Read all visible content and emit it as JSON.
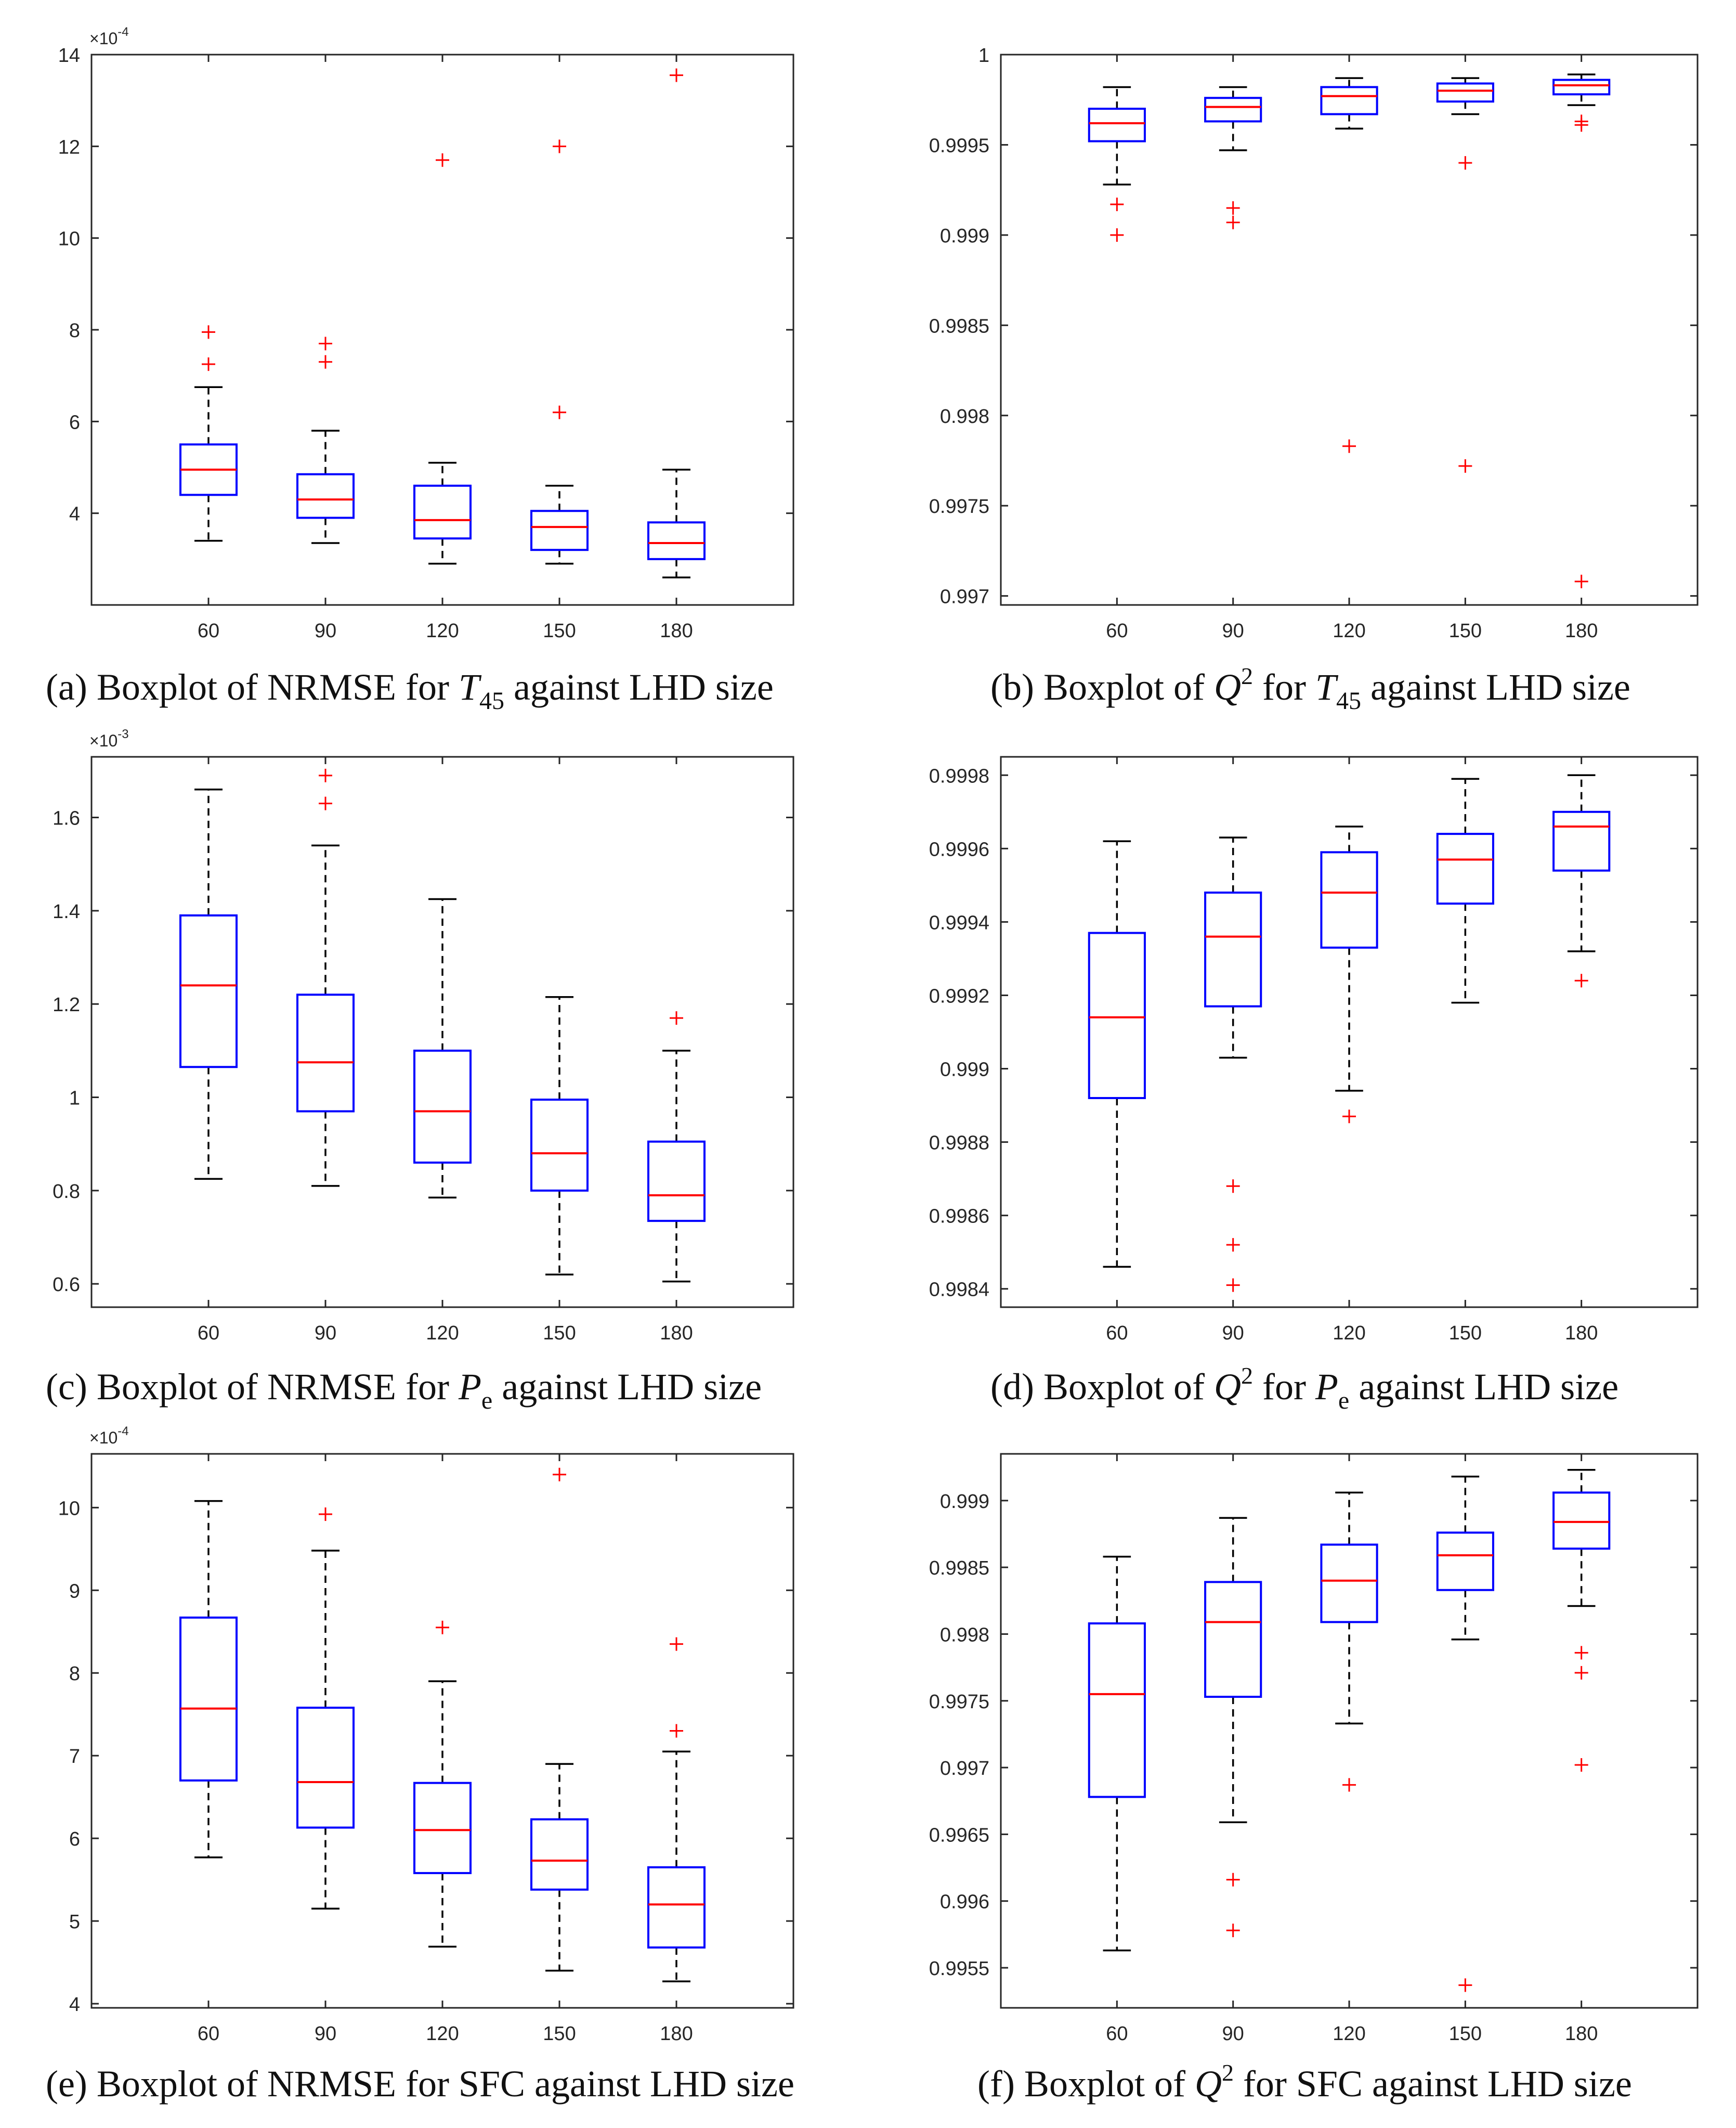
{
  "colors": {
    "box": "#0000ff",
    "median": "#ff0000",
    "outlier": "#ff0000",
    "whisker": "#000000",
    "axis": "#262626"
  },
  "chart_data": [
    {
      "type": "boxplot",
      "caption": {
        "pre": "(a) Boxplot of NRMSE for ",
        "sym": "T",
        "sub": "45",
        "sup": "",
        "post": " against LHD size"
      },
      "exponent": {
        "base": "×10",
        "power": "-4"
      },
      "categories": [
        "60",
        "90",
        "120",
        "150",
        "180"
      ],
      "ylim": [
        2,
        14
      ],
      "yticks": [
        4,
        6,
        8,
        10,
        12,
        14
      ],
      "ytick_labels": [
        "4",
        "6",
        "8",
        "10",
        "12",
        "14"
      ],
      "boxes": [
        {
          "whisker_low": 3.4,
          "q1": 4.4,
          "median": 4.95,
          "q3": 5.5,
          "whisker_high": 6.75,
          "outliers": [
            7.25,
            7.95
          ]
        },
        {
          "whisker_low": 3.35,
          "q1": 3.9,
          "median": 4.3,
          "q3": 4.85,
          "whisker_high": 5.8,
          "outliers": [
            7.3,
            7.7
          ]
        },
        {
          "whisker_low": 2.9,
          "q1": 3.45,
          "median": 3.85,
          "q3": 4.6,
          "whisker_high": 5.1,
          "outliers": [
            11.7
          ]
        },
        {
          "whisker_low": 2.9,
          "q1": 3.2,
          "median": 3.7,
          "q3": 4.05,
          "whisker_high": 4.6,
          "outliers": [
            6.2,
            12.0
          ]
        },
        {
          "whisker_low": 2.6,
          "q1": 3.0,
          "median": 3.35,
          "q3": 3.8,
          "whisker_high": 4.95,
          "outliers": [
            13.55
          ]
        }
      ]
    },
    {
      "type": "boxplot",
      "caption": {
        "pre": "(b) Boxplot of ",
        "sym": "Q",
        "sub": "",
        "sup": "2",
        "mid": " for ",
        "sym2": "T",
        "sub2": "45",
        "post": " against LHD size"
      },
      "exponent": null,
      "categories": [
        "60",
        "90",
        "120",
        "150",
        "180"
      ],
      "ylim": [
        0.99695,
        1.0
      ],
      "yticks": [
        0.997,
        0.9975,
        0.998,
        0.9985,
        0.999,
        0.9995,
        1.0
      ],
      "ytick_labels": [
        "0.997",
        "0.9975",
        "0.998",
        "0.9985",
        "0.999",
        "0.9995",
        "1"
      ],
      "boxes": [
        {
          "whisker_low": 0.99928,
          "q1": 0.99952,
          "median": 0.99962,
          "q3": 0.9997,
          "whisker_high": 0.99982,
          "outliers": [
            0.99917,
            0.999
          ]
        },
        {
          "whisker_low": 0.99947,
          "q1": 0.99963,
          "median": 0.99971,
          "q3": 0.99976,
          "whisker_high": 0.99982,
          "outliers": [
            0.99915,
            0.99907
          ]
        },
        {
          "whisker_low": 0.99959,
          "q1": 0.99967,
          "median": 0.99977,
          "q3": 0.99982,
          "whisker_high": 0.99987,
          "outliers": [
            0.99783
          ]
        },
        {
          "whisker_low": 0.99967,
          "q1": 0.99974,
          "median": 0.9998,
          "q3": 0.99984,
          "whisker_high": 0.99987,
          "outliers": [
            0.9994,
            0.99772
          ]
        },
        {
          "whisker_low": 0.99972,
          "q1": 0.99978,
          "median": 0.99983,
          "q3": 0.99986,
          "whisker_high": 0.99989,
          "outliers": [
            0.99963,
            0.99961,
            0.99708
          ]
        }
      ]
    },
    {
      "type": "boxplot",
      "caption": {
        "pre": "(c) Boxplot of NRMSE for ",
        "sym": "P",
        "sub": "e",
        "sup": "",
        "post": " against LHD size"
      },
      "exponent": {
        "base": "×10",
        "power": "-3"
      },
      "categories": [
        "60",
        "90",
        "120",
        "150",
        "180"
      ],
      "ylim": [
        0.55,
        1.73
      ],
      "yticks": [
        0.6,
        0.8,
        1.0,
        1.2,
        1.4,
        1.6
      ],
      "ytick_labels": [
        "0.6",
        "0.8",
        "1",
        "1.2",
        "1.4",
        "1.6"
      ],
      "boxes": [
        {
          "whisker_low": 0.825,
          "q1": 1.065,
          "median": 1.24,
          "q3": 1.39,
          "whisker_high": 1.66,
          "outliers": []
        },
        {
          "whisker_low": 0.81,
          "q1": 0.97,
          "median": 1.075,
          "q3": 1.22,
          "whisker_high": 1.54,
          "outliers": [
            1.63,
            1.69
          ]
        },
        {
          "whisker_low": 0.785,
          "q1": 0.86,
          "median": 0.97,
          "q3": 1.1,
          "whisker_high": 1.425,
          "outliers": []
        },
        {
          "whisker_low": 0.62,
          "q1": 0.8,
          "median": 0.88,
          "q3": 0.995,
          "whisker_high": 1.215,
          "outliers": []
        },
        {
          "whisker_low": 0.605,
          "q1": 0.735,
          "median": 0.79,
          "q3": 0.905,
          "whisker_high": 1.1,
          "outliers": [
            1.17
          ]
        }
      ]
    },
    {
      "type": "boxplot",
      "caption": {
        "pre": "(d) Boxplot of ",
        "sym": "Q",
        "sub": "",
        "sup": "2",
        "mid": " for  ",
        "sym2": "P",
        "sub2": "e",
        "post": " against LHD size"
      },
      "exponent": null,
      "categories": [
        "60",
        "90",
        "120",
        "150",
        "180"
      ],
      "ylim": [
        0.99835,
        0.99985
      ],
      "yticks": [
        0.9984,
        0.9986,
        0.9988,
        0.999,
        0.9992,
        0.9994,
        0.9996,
        0.9998
      ],
      "ytick_labels": [
        "0.9984",
        "0.9986",
        "0.9988",
        "0.999",
        "0.9992",
        "0.9994",
        "0.9996",
        "0.9998"
      ],
      "boxes": [
        {
          "whisker_low": 0.99846,
          "q1": 0.99892,
          "median": 0.99914,
          "q3": 0.99937,
          "whisker_high": 0.99962,
          "outliers": []
        },
        {
          "whisker_low": 0.99903,
          "q1": 0.99917,
          "median": 0.99936,
          "q3": 0.99948,
          "whisker_high": 0.99963,
          "outliers": [
            0.99868,
            0.99852,
            0.99841
          ]
        },
        {
          "whisker_low": 0.99894,
          "q1": 0.99933,
          "median": 0.99948,
          "q3": 0.99959,
          "whisker_high": 0.99966,
          "outliers": [
            0.99887
          ]
        },
        {
          "whisker_low": 0.99918,
          "q1": 0.99945,
          "median": 0.99957,
          "q3": 0.99964,
          "whisker_high": 0.99979,
          "outliers": []
        },
        {
          "whisker_low": 0.99932,
          "q1": 0.99954,
          "median": 0.99966,
          "q3": 0.9997,
          "whisker_high": 0.9998,
          "outliers": [
            0.99924
          ]
        }
      ]
    },
    {
      "type": "boxplot",
      "caption": {
        "pre": "(e) Boxplot of NRMSE for SFC against LHD size",
        "sym": "",
        "sub": "",
        "sup": "",
        "post": ""
      },
      "exponent": {
        "base": "×10",
        "power": "-4"
      },
      "categories": [
        "60",
        "90",
        "120",
        "150",
        "180"
      ],
      "ylim": [
        3.95,
        10.65
      ],
      "yticks": [
        4,
        5,
        6,
        7,
        8,
        9,
        10
      ],
      "ytick_labels": [
        "4",
        "5",
        "6",
        "7",
        "8",
        "9",
        "10"
      ],
      "boxes": [
        {
          "whisker_low": 5.77,
          "q1": 6.7,
          "median": 7.57,
          "q3": 8.67,
          "whisker_high": 10.08,
          "outliers": []
        },
        {
          "whisker_low": 5.15,
          "q1": 6.13,
          "median": 6.68,
          "q3": 7.58,
          "whisker_high": 9.48,
          "outliers": [
            9.92
          ]
        },
        {
          "whisker_low": 4.69,
          "q1": 5.58,
          "median": 6.1,
          "q3": 6.67,
          "whisker_high": 7.9,
          "outliers": [
            8.55
          ]
        },
        {
          "whisker_low": 4.4,
          "q1": 5.38,
          "median": 5.73,
          "q3": 6.23,
          "whisker_high": 6.9,
          "outliers": [
            10.4
          ]
        },
        {
          "whisker_low": 4.27,
          "q1": 4.68,
          "median": 5.2,
          "q3": 5.65,
          "whisker_high": 7.05,
          "outliers": [
            7.3,
            8.35
          ]
        }
      ]
    },
    {
      "type": "boxplot",
      "caption": {
        "pre": "(f) Boxplot of ",
        "sym": "Q",
        "sub": "",
        "sup": "2",
        "mid": " for  SFC against LHD size",
        "sym2": "",
        "sub2": "",
        "post": ""
      },
      "exponent": null,
      "categories": [
        "60",
        "90",
        "120",
        "150",
        "180"
      ],
      "ylim": [
        0.9952,
        0.99935
      ],
      "yticks": [
        0.9955,
        0.996,
        0.9965,
        0.997,
        0.9975,
        0.998,
        0.9985,
        0.999
      ],
      "ytick_labels": [
        "0.9955",
        "0.996",
        "0.9965",
        "0.997",
        "0.9975",
        "0.998",
        "0.9985",
        "0.999"
      ],
      "boxes": [
        {
          "whisker_low": 0.99563,
          "q1": 0.99678,
          "median": 0.99755,
          "q3": 0.99808,
          "whisker_high": 0.99858,
          "outliers": []
        },
        {
          "whisker_low": 0.99659,
          "q1": 0.99753,
          "median": 0.99809,
          "q3": 0.99839,
          "whisker_high": 0.99887,
          "outliers": [
            0.99616,
            0.99578
          ]
        },
        {
          "whisker_low": 0.99733,
          "q1": 0.99809,
          "median": 0.9984,
          "q3": 0.99867,
          "whisker_high": 0.99906,
          "outliers": [
            0.99687
          ]
        },
        {
          "whisker_low": 0.99796,
          "q1": 0.99833,
          "median": 0.99859,
          "q3": 0.99876,
          "whisker_high": 0.99918,
          "outliers": [
            0.99537
          ]
        },
        {
          "whisker_low": 0.99821,
          "q1": 0.99864,
          "median": 0.99884,
          "q3": 0.99906,
          "whisker_high": 0.99923,
          "outliers": [
            0.99786,
            0.99771,
            0.99702
          ]
        }
      ]
    }
  ]
}
